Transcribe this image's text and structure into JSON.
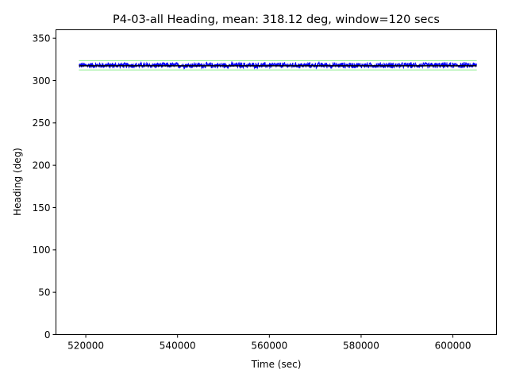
{
  "chart_data": {
    "type": "line",
    "title": "P4-03-all Heading, mean: 318.12 deg, window=120 secs",
    "xlabel": "Time (sec)",
    "ylabel": "Heading (deg)",
    "xlim": [
      513500,
      609500
    ],
    "ylim": [
      0,
      360
    ],
    "xticks": [
      520000,
      540000,
      560000,
      580000,
      600000
    ],
    "yticks": [
      0,
      50,
      100,
      150,
      200,
      250,
      300,
      350
    ],
    "grid": false,
    "x_start": 518500,
    "x_end": 605200,
    "series": [
      {
        "role": "heading",
        "color": "#0000ff",
        "mean": 318.12,
        "band": [
          314,
          322
        ],
        "style": "noisy-line"
      },
      {
        "role": "window-mean",
        "color": "#000000",
        "value": 317.5,
        "style": "line"
      },
      {
        "role": "upper-bound",
        "color": "#90ee90",
        "value": 323.5,
        "style": "line"
      },
      {
        "role": "lower-bound",
        "color": "#90ee90",
        "value": 312.5,
        "style": "line"
      }
    ]
  }
}
